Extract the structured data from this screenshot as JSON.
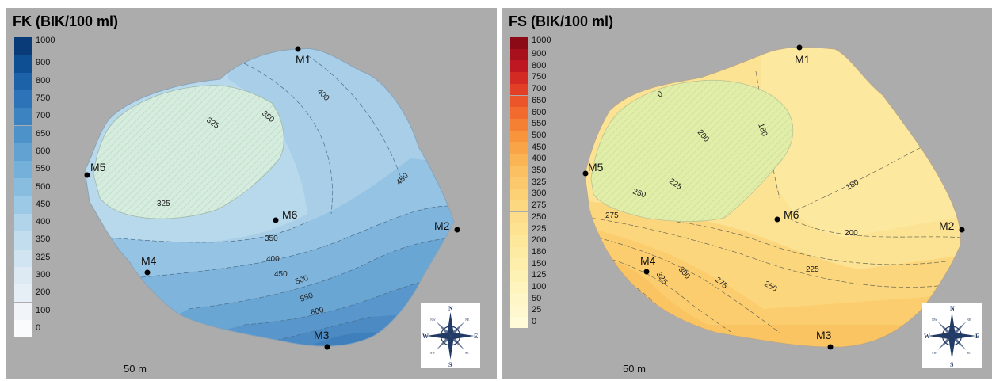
{
  "panels": [
    {
      "title": "FK (BIK/100 ml)",
      "scale_label": "50 m",
      "legend": {
        "labels": [
          "1000",
          "900",
          "800",
          "750",
          "700",
          "650",
          "600",
          "550",
          "500",
          "450",
          "400",
          "350",
          "325",
          "300",
          "200",
          "100",
          "0"
        ],
        "colors": [
          "#083b78",
          "#0e4e92",
          "#1c62a8",
          "#2c74b7",
          "#3c84c1",
          "#4d93ca",
          "#61a2d2",
          "#74b0d9",
          "#88bde0",
          "#9cc9e6",
          "#b1d4eb",
          "#c2ddee",
          "#d0e4f1",
          "#dde9f3",
          "#e7eff6",
          "#f1f5f9",
          "#f9fbfd"
        ]
      },
      "markers": [
        "M1",
        "M2",
        "M3",
        "M4",
        "M5",
        "M6"
      ],
      "contour_labels": [
        "400",
        "350",
        "325",
        "450",
        "325",
        "350",
        "400",
        "450",
        "500",
        "550",
        "600"
      ]
    },
    {
      "title": "FS (BIK/100 ml)",
      "scale_label": "50 m",
      "legend": {
        "labels": [
          "1000",
          "900",
          "800",
          "750",
          "700",
          "650",
          "600",
          "550",
          "500",
          "450",
          "400",
          "350",
          "325",
          "300",
          "275",
          "250",
          "225",
          "200",
          "180",
          "150",
          "125",
          "100",
          "50",
          "25",
          "0"
        ],
        "colors": [
          "#8c0a16",
          "#a8101d",
          "#c01822",
          "#d42a24",
          "#e33f26",
          "#ec552a",
          "#f26a2e",
          "#f58034",
          "#f7943c",
          "#f9a547",
          "#fab454",
          "#fbc061",
          "#fbc96c",
          "#fcd176",
          "#fcd880",
          "#fddd89",
          "#fde292",
          "#fde79b",
          "#fdeba4",
          "#feeeac",
          "#fef1b4",
          "#fef4bd",
          "#fef6c6",
          "#fff8cf",
          "#fffad8"
        ]
      },
      "markers": [
        "M1",
        "M2",
        "M3",
        "M4",
        "M5",
        "M6"
      ],
      "contour_labels": [
        "0",
        "200",
        "180",
        "225",
        "250",
        "275",
        "180",
        "200",
        "225",
        "250",
        "275",
        "300",
        "325"
      ]
    }
  ],
  "compass": {
    "n": "N",
    "s": "S",
    "e": "E",
    "w": "W",
    "nw": "NW",
    "ne": "NE",
    "sw": "SW",
    "se": "SE"
  }
}
